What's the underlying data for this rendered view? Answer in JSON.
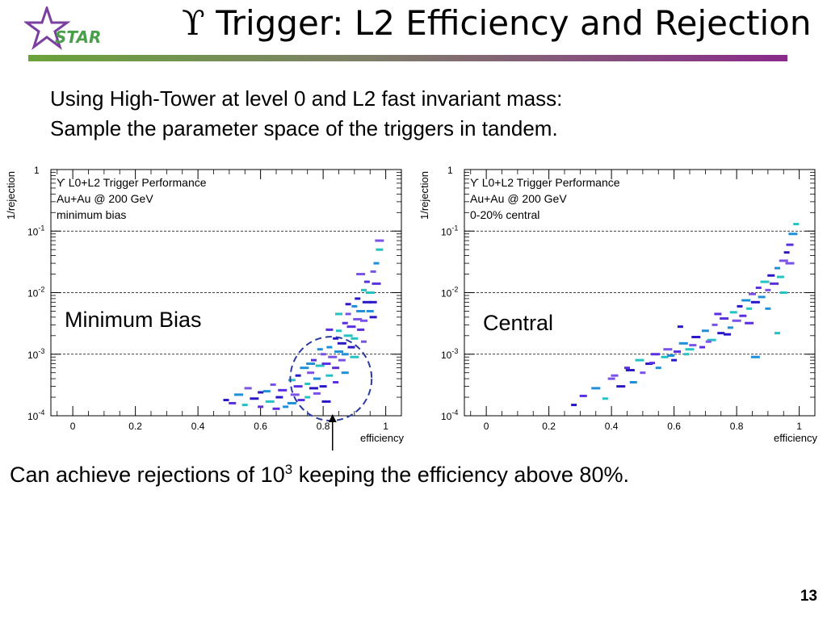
{
  "slide": {
    "title_symbol": "ϒ",
    "title": "Trigger: L2 Efficiency and Rejection",
    "logo_text": "STAR",
    "intro_line1": "Using High-Tower at level 0 and L2 fast invariant mass:",
    "intro_line2": "Sample the parameter space of the triggers in tandem.",
    "caption_pre": "Can achieve rejections of 10",
    "caption_sup": "3",
    "caption_post": " keeping the efficiency above 80%.",
    "page_number": "13",
    "colors": {
      "title_rule_start": "#6aa33a",
      "title_rule_end": "#8b2a8b",
      "logo_star": "#7b3fa0",
      "logo_text": "#4aa04a",
      "annotation": "#2b3aa0"
    }
  },
  "chart_data": [
    {
      "type": "scatter",
      "legend_lines": [
        "ϒ  L0+L2 Trigger Performance",
        "Au+Au @ 200 GeV",
        "minimum bias"
      ],
      "overlay_label": "Minimum Bias",
      "xlabel": "efficiency",
      "ylabel": "1/rejection",
      "xlim": [
        -0.07,
        1.05
      ],
      "ylim": [
        0.0001,
        1
      ],
      "yscale": "log",
      "x_ticks": [
        "0",
        "0.2",
        "0.4",
        "0.6",
        "0.8",
        "1"
      ],
      "y_ticks": [
        {
          "base": "1",
          "exp": ""
        },
        {
          "base": "10",
          "exp": "-1"
        },
        {
          "base": "10",
          "exp": "-2"
        },
        {
          "base": "10",
          "exp": "-3"
        },
        {
          "base": "10",
          "exp": "-4"
        }
      ],
      "grid_y": true,
      "highlight_ellipse": {
        "x_center": 0.825,
        "y_center": 0.0004,
        "x_halfwidth": 0.13
      },
      "arrow_x": 0.83,
      "x": [
        0.49,
        0.51,
        0.53,
        0.55,
        0.56,
        0.58,
        0.6,
        0.62,
        0.63,
        0.64,
        0.66,
        0.67,
        0.68,
        0.7,
        0.71,
        0.72,
        0.73,
        0.74,
        0.75,
        0.76,
        0.77,
        0.77,
        0.78,
        0.79,
        0.8,
        0.8,
        0.81,
        0.82,
        0.82,
        0.83,
        0.84,
        0.84,
        0.85,
        0.85,
        0.86,
        0.86,
        0.87,
        0.87,
        0.88,
        0.88,
        0.89,
        0.89,
        0.9,
        0.9,
        0.91,
        0.91,
        0.92,
        0.92,
        0.93,
        0.93,
        0.94,
        0.94,
        0.95,
        0.95,
        0.96,
        0.96,
        0.97,
        0.97,
        0.98,
        0.98,
        0.6,
        0.65,
        0.7,
        0.75,
        0.78,
        0.81,
        0.84,
        0.87,
        0.9,
        0.93,
        0.96,
        0.72,
        0.79,
        0.85,
        0.92,
        0.88,
        0.82,
        0.76
      ],
      "y": [
        0.00018,
        0.00016,
        0.00022,
        0.00015,
        0.00028,
        0.00019,
        0.00014,
        0.00025,
        0.00017,
        0.00032,
        0.0002,
        0.00026,
        0.00014,
        0.00038,
        0.00022,
        0.00045,
        0.00018,
        0.0006,
        0.00033,
        0.0005,
        0.00028,
        0.0008,
        0.0004,
        0.00065,
        0.001,
        0.0003,
        0.0007,
        0.0013,
        0.00045,
        0.0009,
        0.0018,
        0.0006,
        0.0011,
        0.0024,
        0.0008,
        0.0015,
        0.0032,
        0.001,
        0.002,
        0.0045,
        0.0013,
        0.0028,
        0.006,
        0.0018,
        0.0037,
        0.008,
        0.0025,
        0.005,
        0.011,
        0.0035,
        0.007,
        0.015,
        0.005,
        0.01,
        0.022,
        0.007,
        0.014,
        0.03,
        0.05,
        0.07,
        0.00024,
        0.00013,
        0.00016,
        0.0002,
        0.00023,
        0.00017,
        0.00035,
        0.0005,
        0.0009,
        0.0016,
        0.004,
        0.0003,
        0.0012,
        0.0045,
        0.02,
        0.0065,
        0.0025,
        0.0007
      ]
    },
    {
      "type": "scatter",
      "legend_lines": [
        "ϒ  L0+L2 Trigger Performance",
        "Au+Au @ 200 GeV",
        "0-20% central"
      ],
      "overlay_label": "Central",
      "xlabel": "efficiency",
      "ylabel": "1/rejection",
      "xlim": [
        -0.07,
        1.05
      ],
      "ylim": [
        0.0001,
        1
      ],
      "yscale": "log",
      "x_ticks": [
        "0",
        "0.2",
        "0.4",
        "0.6",
        "0.8",
        "1"
      ],
      "y_ticks": [
        {
          "base": "1",
          "exp": ""
        },
        {
          "base": "10",
          "exp": "-1"
        },
        {
          "base": "10",
          "exp": "-2"
        },
        {
          "base": "10",
          "exp": "-3"
        },
        {
          "base": "10",
          "exp": "-4"
        }
      ],
      "grid_y": true,
      "x": [
        0.28,
        0.31,
        0.35,
        0.38,
        0.41,
        0.43,
        0.45,
        0.47,
        0.49,
        0.5,
        0.52,
        0.54,
        0.55,
        0.57,
        0.58,
        0.6,
        0.61,
        0.63,
        0.64,
        0.66,
        0.67,
        0.69,
        0.7,
        0.72,
        0.73,
        0.75,
        0.76,
        0.78,
        0.79,
        0.8,
        0.81,
        0.82,
        0.83,
        0.84,
        0.85,
        0.86,
        0.87,
        0.88,
        0.89,
        0.9,
        0.91,
        0.92,
        0.93,
        0.94,
        0.95,
        0.96,
        0.97,
        0.98,
        0.99,
        0.4,
        0.46,
        0.53,
        0.59,
        0.65,
        0.71,
        0.77,
        0.84,
        0.9,
        0.95,
        0.97,
        0.62,
        0.74,
        0.86,
        0.93
      ],
      "y": [
        0.00015,
        0.00021,
        0.00028,
        0.00019,
        0.00045,
        0.0003,
        0.0006,
        0.00035,
        0.0008,
        0.0005,
        0.0007,
        0.001,
        0.0006,
        0.0009,
        0.0012,
        0.0008,
        0.0011,
        0.0015,
        0.001,
        0.0014,
        0.0019,
        0.0013,
        0.0024,
        0.0017,
        0.003,
        0.0022,
        0.0038,
        0.0027,
        0.0048,
        0.0035,
        0.006,
        0.0042,
        0.0075,
        0.0055,
        0.0095,
        0.007,
        0.012,
        0.0085,
        0.015,
        0.011,
        0.019,
        0.014,
        0.025,
        0.018,
        0.033,
        0.045,
        0.06,
        0.09,
        0.13,
        0.0004,
        0.00055,
        0.00072,
        0.00095,
        0.0012,
        0.0016,
        0.0021,
        0.0032,
        0.0055,
        0.01,
        0.03,
        0.0028,
        0.0045,
        0.0009,
        0.0022
      ]
    }
  ]
}
